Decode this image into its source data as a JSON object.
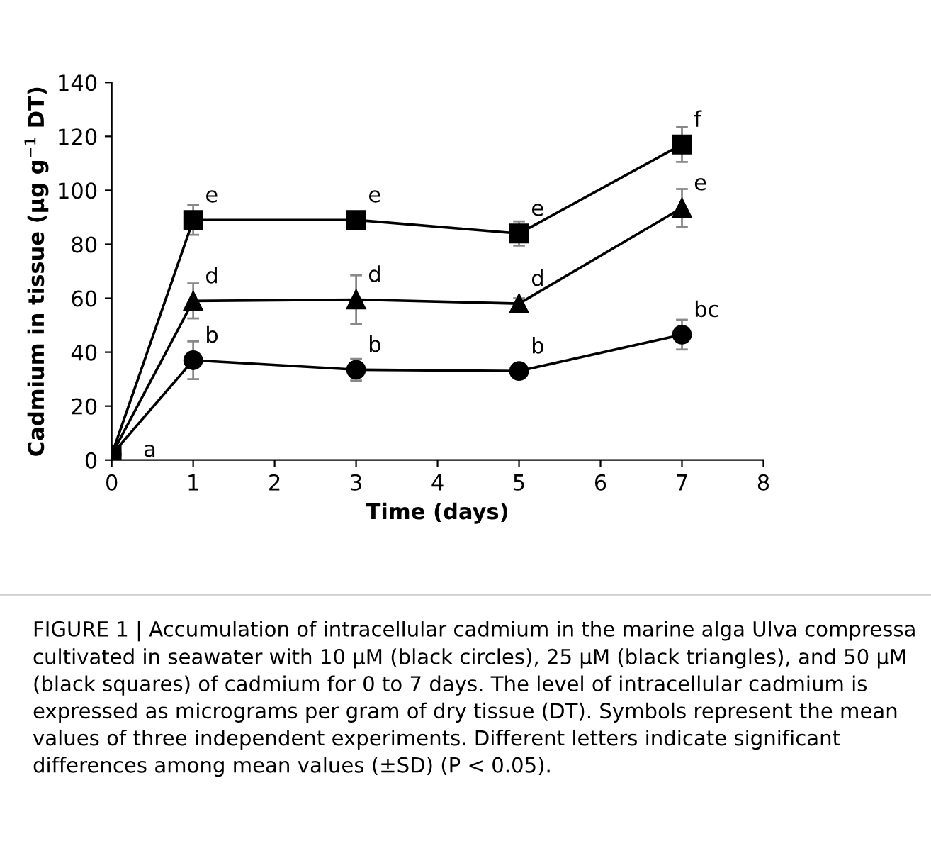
{
  "chart_data": {
    "type": "line",
    "xlabel": "Time (days)",
    "ylabel": "Cadmium in tissue (µg g$^{−1}$ DT)",
    "x": [
      0,
      1,
      3,
      5,
      7
    ],
    "series": [
      {
        "color": "#000000",
        "marker": "circle",
        "values": [
          2,
          37,
          33.5,
          33,
          46.5
        ],
        "errors": [
          null,
          7,
          4,
          1,
          5.5
        ]
      },
      {
        "color": "#000000",
        "marker": "triangle",
        "values": [
          2,
          59,
          59.5,
          58,
          93.5
        ],
        "errors": [
          null,
          6.5,
          9,
          2,
          7
        ]
      },
      {
        "color": "#000000",
        "marker": "square",
        "values": [
          2,
          89,
          89,
          84,
          117
        ],
        "errors": [
          null,
          5.5,
          3,
          4.5,
          6.5
        ]
      }
    ],
    "xlim": [
      0,
      8
    ],
    "xticks": [
      0,
      1,
      2,
      3,
      4,
      5,
      6,
      7,
      8
    ],
    "ylim": [
      0,
      140
    ],
    "yticks": [
      0,
      20,
      40,
      60,
      80,
      100,
      120,
      140
    ],
    "grid": false,
    "legend": false,
    "line_style": "solid",
    "annotations": [
      {
        "text": "a",
        "x": 0,
        "y": 2
      },
      {
        "text": "b",
        "x": 1,
        "y": 37
      },
      {
        "text": "b",
        "x": 3,
        "y": 33.5
      },
      {
        "text": "b",
        "x": 5,
        "y": 33
      },
      {
        "text": "bc",
        "x": 7,
        "y": 46.5
      },
      {
        "text": "d",
        "x": 1,
        "y": 59
      },
      {
        "text": "d",
        "x": 3,
        "y": 59.5
      },
      {
        "text": "d",
        "x": 5,
        "y": 58
      },
      {
        "text": "e",
        "x": 7,
        "y": 93.5
      },
      {
        "text": "e",
        "x": 1,
        "y": 89
      },
      {
        "text": "e",
        "x": 3,
        "y": 89
      },
      {
        "text": "e",
        "x": 5,
        "y": 84
      },
      {
        "text": "f",
        "x": 7,
        "y": 117
      },
      "FIGURE 1 | Accumulation of intracellular cadmium in the marine alga Ulva compressa cultivated in seawater with 10 µM (black circles), 25 µM (black triangles), and 50 µM (black squares) of cadmium for 0 to 7 days. The level of intracellular cadmium is expressed as micrograms per gram of dry tissue (DT). Symbols represent the mean values of three independent experiments. Different letters indicate significant differences among mean values (±SD) (P < 0.05)."
    ]
  }
}
